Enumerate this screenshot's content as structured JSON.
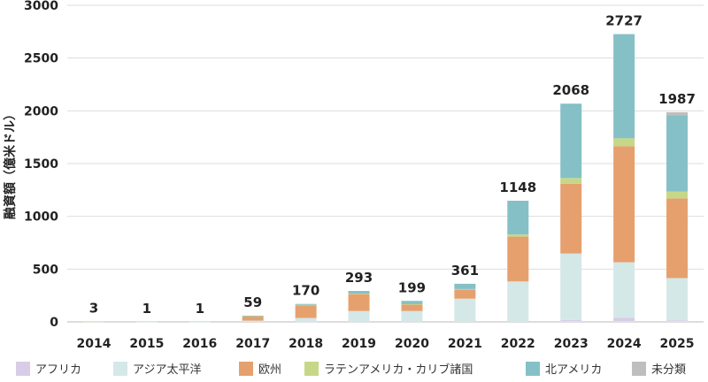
{
  "chart_data": {
    "type": "bar",
    "stacked": true,
    "ylabel": "融資額（億米ドル）",
    "ylim": [
      0,
      3000
    ],
    "yticks": [
      0,
      500,
      1000,
      1500,
      2000,
      2500,
      3000
    ],
    "grid": true,
    "legend_position": "bottom",
    "categories": [
      "2014",
      "2015",
      "2016",
      "2017",
      "2018",
      "2019",
      "2020",
      "2021",
      "2022",
      "2023",
      "2024",
      "2025"
    ],
    "totals": [
      "3",
      "1",
      "1",
      "59",
      "170",
      "293",
      "199",
      "361",
      "1148",
      "2068",
      "2727",
      "1987"
    ],
    "series": [
      {
        "name": "アフリカ",
        "color": "#d9cce6",
        "values": [
          0,
          0,
          0,
          0,
          2,
          3,
          3,
          5,
          8,
          18,
          40,
          15
        ]
      },
      {
        "name": "アジア太平洋",
        "color": "#d4e8e8",
        "values": [
          2,
          1,
          1,
          12,
          35,
          100,
          100,
          215,
          375,
          630,
          525,
          400
        ]
      },
      {
        "name": "欧州",
        "color": "#e6a06e",
        "values": [
          1,
          0,
          0,
          40,
          120,
          160,
          60,
          85,
          425,
          660,
          1100,
          755
        ]
      },
      {
        "name": "ラテンアメリカ・カリブ諸国",
        "color": "#c6d888",
        "values": [
          0,
          0,
          0,
          2,
          5,
          5,
          5,
          6,
          20,
          55,
          75,
          65
        ]
      },
      {
        "name": "北アメリカ",
        "color": "#85c0c7",
        "values": [
          0,
          0,
          0,
          5,
          8,
          25,
          31,
          50,
          320,
          705,
          987,
          722
        ]
      },
      {
        "name": "未分類",
        "color": "#bebebe",
        "values": [
          0,
          0,
          0,
          0,
          0,
          0,
          0,
          0,
          0,
          0,
          0,
          30
        ]
      }
    ]
  }
}
